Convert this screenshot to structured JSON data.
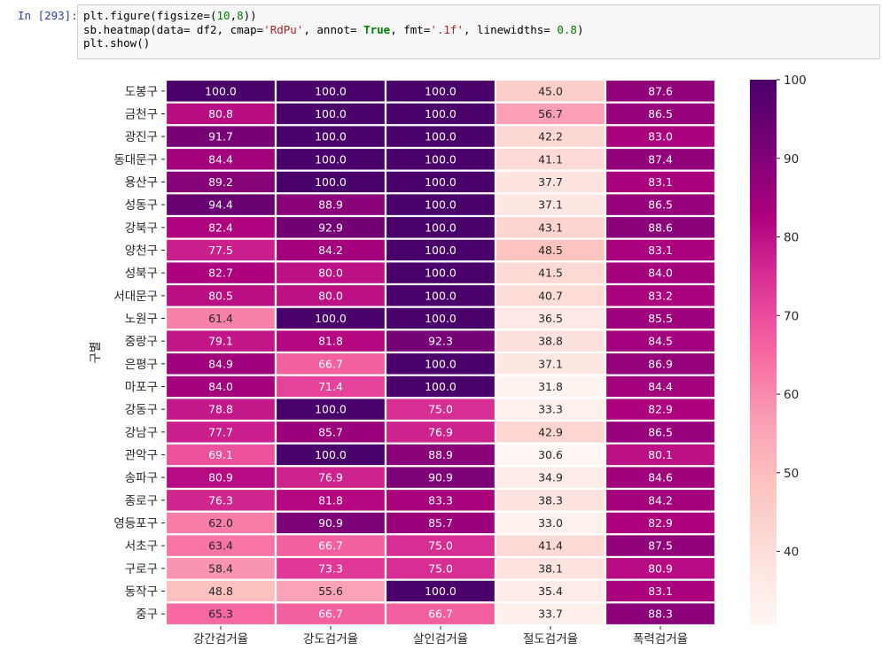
{
  "cell": {
    "prompt": "In [293]:",
    "code": [
      [
        {
          "t": "plt.figure(figsize=("
        },
        {
          "t": "10",
          "c": "n"
        },
        {
          "t": ","
        },
        {
          "t": "8",
          "c": "n"
        },
        {
          "t": "))"
        }
      ],
      [
        {
          "t": "sb.heatmap(data= df2, cmap="
        },
        {
          "t": "'RdPu'",
          "c": "s"
        },
        {
          "t": ", annot= "
        },
        {
          "t": "True",
          "c": "k"
        },
        {
          "t": ", fmt="
        },
        {
          "t": "'.1f'",
          "c": "s"
        },
        {
          "t": ", linewidths= "
        },
        {
          "t": "0.8",
          "c": "n"
        },
        {
          "t": ")"
        }
      ],
      [
        {
          "t": "plt.show()"
        }
      ]
    ]
  },
  "chart_data": {
    "type": "heatmap",
    "ylabel": "구별",
    "xlabel": "",
    "columns": [
      "강간검거율",
      "강도검거율",
      "살인검거율",
      "절도검거율",
      "폭력검거율"
    ],
    "rows": [
      "도봉구",
      "금천구",
      "광진구",
      "동대문구",
      "용산구",
      "성동구",
      "강북구",
      "양천구",
      "성북구",
      "서대문구",
      "노원구",
      "중랑구",
      "은평구",
      "마포구",
      "강동구",
      "강남구",
      "관악구",
      "송파구",
      "종로구",
      "영등포구",
      "서초구",
      "구로구",
      "동작구",
      "중구"
    ],
    "values": [
      [
        100.0,
        100.0,
        100.0,
        45.0,
        87.6
      ],
      [
        80.8,
        100.0,
        100.0,
        56.7,
        86.5
      ],
      [
        91.7,
        100.0,
        100.0,
        42.2,
        83.0
      ],
      [
        84.4,
        100.0,
        100.0,
        41.1,
        87.4
      ],
      [
        89.2,
        100.0,
        100.0,
        37.7,
        83.1
      ],
      [
        94.4,
        88.9,
        100.0,
        37.1,
        86.5
      ],
      [
        82.4,
        92.9,
        100.0,
        43.1,
        88.6
      ],
      [
        77.5,
        84.2,
        100.0,
        48.5,
        83.1
      ],
      [
        82.7,
        80.0,
        100.0,
        41.5,
        84.0
      ],
      [
        80.5,
        80.0,
        100.0,
        40.7,
        83.2
      ],
      [
        61.4,
        100.0,
        100.0,
        36.5,
        85.5
      ],
      [
        79.1,
        81.8,
        92.3,
        38.8,
        84.5
      ],
      [
        84.9,
        66.7,
        100.0,
        37.1,
        86.9
      ],
      [
        84.0,
        71.4,
        100.0,
        31.8,
        84.4
      ],
      [
        78.8,
        100.0,
        75.0,
        33.3,
        82.9
      ],
      [
        77.7,
        85.7,
        76.9,
        42.9,
        86.5
      ],
      [
        69.1,
        100.0,
        88.9,
        30.6,
        80.1
      ],
      [
        80.9,
        76.9,
        90.9,
        34.9,
        84.6
      ],
      [
        76.3,
        81.8,
        83.3,
        38.3,
        84.2
      ],
      [
        62.0,
        90.9,
        85.7,
        33.0,
        82.9
      ],
      [
        63.4,
        66.7,
        75.0,
        41.4,
        87.5
      ],
      [
        58.4,
        73.3,
        75.0,
        38.1,
        80.9
      ],
      [
        48.8,
        55.6,
        100.0,
        35.4,
        83.1
      ],
      [
        65.3,
        66.7,
        66.7,
        33.7,
        88.3
      ]
    ],
    "colorbar": {
      "min": 30.6,
      "max": 100,
      "ticks": [
        40,
        50,
        60,
        70,
        80,
        90,
        100
      ]
    },
    "cmap": "RdPu",
    "fmt": ".1f"
  }
}
